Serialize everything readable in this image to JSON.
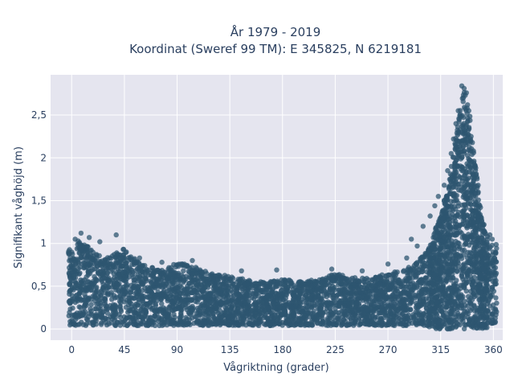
{
  "chart_data": {
    "type": "scatter",
    "title_line1": "År 1979 - 2019",
    "title_line2": "Koordinat (Sweref 99 TM): E 345825, N 6219181",
    "xlabel": "Vågriktning (grader)",
    "ylabel": "Signifikant våghöjd (m)",
    "xlim": [
      -18,
      368
    ],
    "ylim": [
      -0.13,
      2.97
    ],
    "xticks": [
      0,
      45,
      90,
      135,
      180,
      225,
      270,
      315,
      360
    ],
    "xtick_labels": [
      "0",
      "45",
      "90",
      "135",
      "180",
      "225",
      "270",
      "315",
      "360"
    ],
    "yticks": [
      0,
      0.5,
      1,
      1.5,
      2,
      2.5
    ],
    "ytick_labels": [
      "0",
      "0,5",
      "1",
      "1,5",
      "2",
      "2,5"
    ],
    "grid": true,
    "marker_color": "#2e5670",
    "plot_bg": "#e5e5ef",
    "envelope": {
      "x": [
        0,
        5,
        10,
        20,
        30,
        45,
        60,
        75,
        90,
        100,
        110,
        120,
        135,
        150,
        165,
        180,
        195,
        210,
        225,
        240,
        255,
        270,
        285,
        295,
        305,
        315,
        322,
        328,
        332,
        335,
        338,
        341,
        345,
        350,
        355,
        360
      ],
      "y_max": [
        0.95,
        1.05,
        1.0,
        0.9,
        0.85,
        0.95,
        0.75,
        0.7,
        0.78,
        0.75,
        0.7,
        0.65,
        0.62,
        0.58,
        0.55,
        0.58,
        0.56,
        0.58,
        0.65,
        0.6,
        0.6,
        0.65,
        0.7,
        0.78,
        0.95,
        1.35,
        1.7,
        2.3,
        2.6,
        2.8,
        2.7,
        2.4,
        1.9,
        1.3,
        1.05,
        1.0
      ]
    },
    "outliers": [
      {
        "x": 3,
        "y": 1.05
      },
      {
        "x": 8,
        "y": 1.12
      },
      {
        "x": 15,
        "y": 1.07
      },
      {
        "x": 24,
        "y": 1.02
      },
      {
        "x": 38,
        "y": 1.1
      },
      {
        "x": 44,
        "y": 0.93
      },
      {
        "x": 58,
        "y": 0.83
      },
      {
        "x": 77,
        "y": 0.78
      },
      {
        "x": 103,
        "y": 0.8
      },
      {
        "x": 145,
        "y": 0.68
      },
      {
        "x": 175,
        "y": 0.69
      },
      {
        "x": 222,
        "y": 0.7
      },
      {
        "x": 248,
        "y": 0.68
      },
      {
        "x": 270,
        "y": 0.76
      },
      {
        "x": 286,
        "y": 0.83
      },
      {
        "x": 290,
        "y": 1.05
      },
      {
        "x": 295,
        "y": 0.97
      },
      {
        "x": 300,
        "y": 1.2
      },
      {
        "x": 306,
        "y": 1.32
      },
      {
        "x": 310,
        "y": 1.44
      },
      {
        "x": 313,
        "y": 1.55
      },
      {
        "x": 318,
        "y": 1.68
      },
      {
        "x": 321,
        "y": 1.85
      },
      {
        "x": 324,
        "y": 2.05
      },
      {
        "x": 326,
        "y": 2.22
      },
      {
        "x": 328,
        "y": 2.4
      },
      {
        "x": 330,
        "y": 2.55
      },
      {
        "x": 332,
        "y": 2.48
      },
      {
        "x": 333,
        "y": 2.84
      },
      {
        "x": 335,
        "y": 2.81
      },
      {
        "x": 336,
        "y": 2.73
      },
      {
        "x": 337,
        "y": 2.76
      },
      {
        "x": 338,
        "y": 2.62
      },
      {
        "x": 339,
        "y": 2.55
      },
      {
        "x": 341,
        "y": 2.25
      },
      {
        "x": 343,
        "y": 2.08
      },
      {
        "x": 344,
        "y": 1.92
      },
      {
        "x": 347,
        "y": 1.68
      },
      {
        "x": 349,
        "y": 1.42
      },
      {
        "x": 352,
        "y": 1.22
      },
      {
        "x": 355,
        "y": 1.08
      },
      {
        "x": 357,
        "y": 1.1
      },
      {
        "x": 359,
        "y": 1.05
      }
    ]
  }
}
